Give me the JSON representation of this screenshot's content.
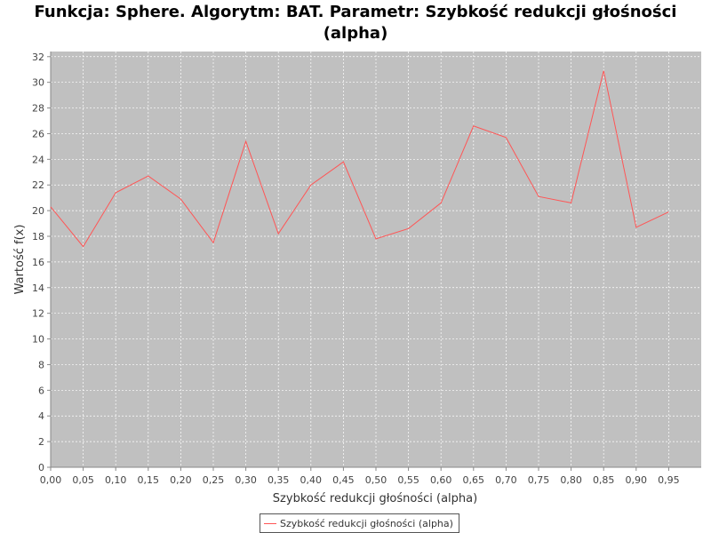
{
  "chart_data": {
    "type": "line",
    "title_line1": "Funkcja: Sphere. Algorytm: BAT. Parametr: Szybkość redukcji głośności",
    "title_line2": "(alpha)",
    "xlabel": "Szybkość redukcji głośności (alpha)",
    "ylabel": "Wartość f(x)",
    "x": [
      0.0,
      0.05,
      0.1,
      0.15,
      0.2,
      0.25,
      0.3,
      0.35,
      0.4,
      0.45,
      0.5,
      0.55,
      0.6,
      0.65,
      0.7,
      0.75,
      0.8,
      0.85,
      0.9,
      0.95
    ],
    "x_tick_labels": [
      "0,00",
      "0,05",
      "0,10",
      "0,15",
      "0,20",
      "0,25",
      "0,30",
      "0,35",
      "0,40",
      "0,45",
      "0,50",
      "0,55",
      "0,60",
      "0,65",
      "0,70",
      "0,75",
      "0,80",
      "0,85",
      "0,90",
      "0,95"
    ],
    "y_ticks": [
      0,
      2,
      4,
      6,
      8,
      10,
      12,
      14,
      16,
      18,
      20,
      22,
      24,
      26,
      28,
      30,
      32
    ],
    "xlim": [
      0.0,
      1.0
    ],
    "ylim": [
      0,
      32.4
    ],
    "grid": true,
    "legend_position": "bottom-center",
    "series": [
      {
        "name": "Szybkość redukcji głośności (alpha)",
        "color": "#ff5555",
        "values": [
          20.3,
          17.2,
          21.4,
          22.7,
          20.9,
          17.5,
          25.4,
          18.2,
          22.0,
          23.8,
          17.8,
          18.6,
          20.6,
          26.6,
          25.7,
          21.1,
          20.6,
          30.9,
          18.7,
          19.9
        ]
      }
    ],
    "colors": {
      "plot_background": "#c0c0c0",
      "gridline": "#ffffff",
      "axis": "#888888"
    }
  }
}
